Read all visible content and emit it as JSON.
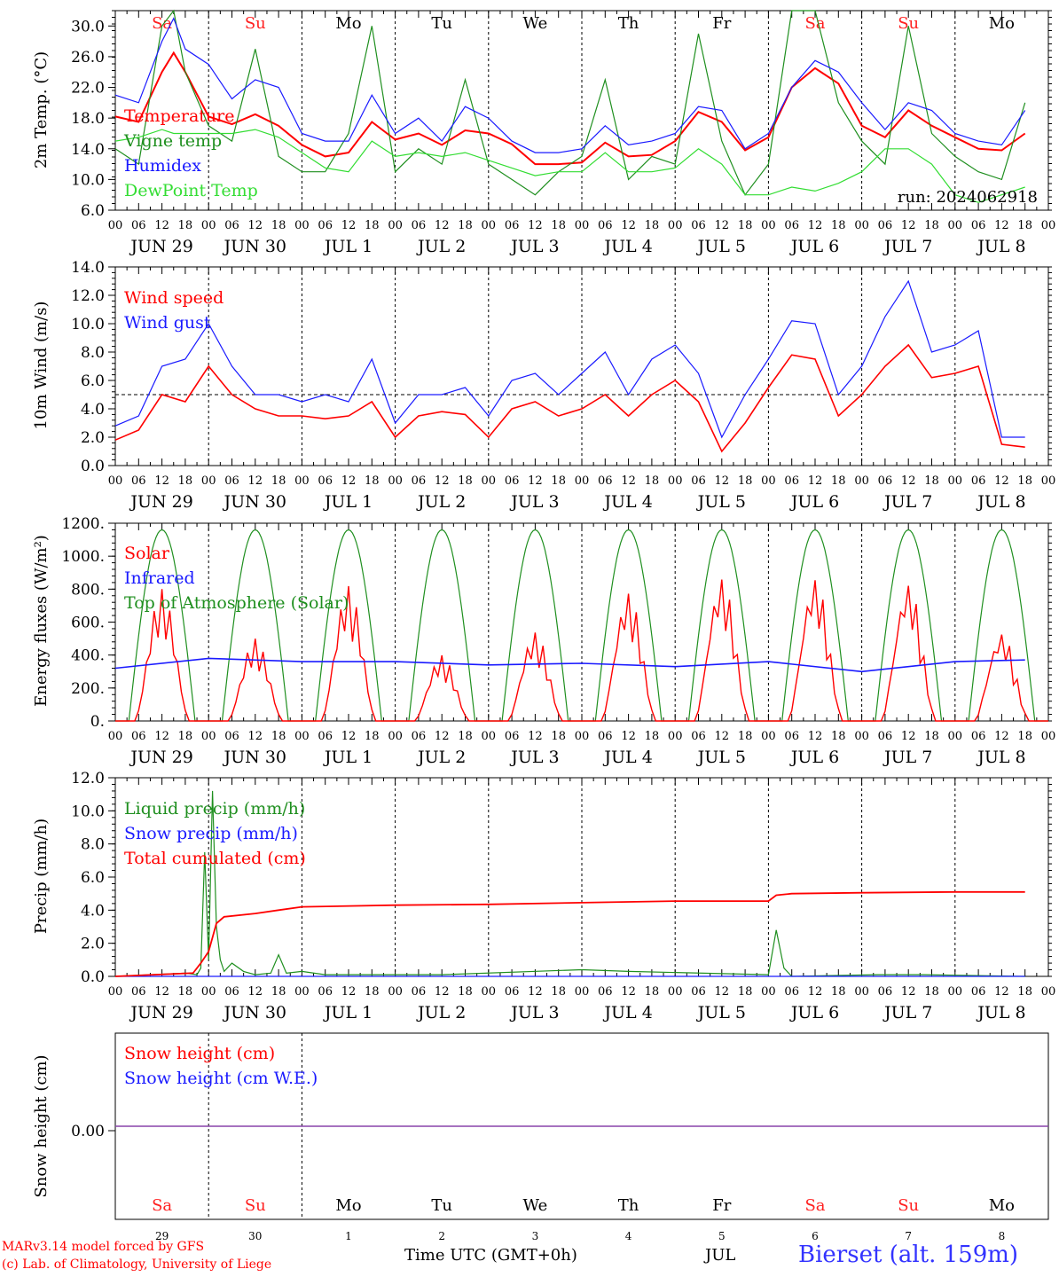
{
  "run_label": "run: 2024062918",
  "weekdays": [
    {
      "label": "Sa",
      "weekend": true
    },
    {
      "label": "Su",
      "weekend": true
    },
    {
      "label": "Mo",
      "weekend": false
    },
    {
      "label": "Tu",
      "weekend": false
    },
    {
      "label": "We",
      "weekend": false
    },
    {
      "label": "Th",
      "weekend": false
    },
    {
      "label": "Fr",
      "weekend": false
    },
    {
      "label": "Sa",
      "weekend": true
    },
    {
      "label": "Su",
      "weekend": true
    },
    {
      "label": "Mo",
      "weekend": false
    }
  ],
  "hour_ticks": [
    "00",
    "06",
    "12",
    "18"
  ],
  "date_labels": [
    "JUN 29",
    "JUN 30",
    "JUL  1",
    "JUL  2",
    "JUL  3",
    "JUL  4",
    "JUL  5",
    "JUL  6",
    "JUL  7",
    "JUL  8"
  ],
  "day_numbers": [
    "29",
    "30",
    "1",
    "2",
    "3",
    "4",
    "5",
    "6",
    "7",
    "8"
  ],
  "colors": {
    "red": "#ff0000",
    "green": "#1f8f1f",
    "blue": "#1a1aff",
    "lime": "#33dd33",
    "weekend": "#ff2020",
    "purple": "#8844aa"
  },
  "footer": {
    "model": "MARv3.14 model forced by GFS",
    "lab": "(c) Lab. of Climatology, University of Liege",
    "xlabel": "Time UTC (GMT+0h)",
    "month": "JUL",
    "station": "Bierset (alt. 159m)"
  },
  "chart_data": [
    {
      "type": "line",
      "ylabel": "2m Temp. (°C)",
      "ylim": [
        6,
        32
      ],
      "yticks": [
        "6.0",
        "10.0",
        "14.0",
        "18.0",
        "22.0",
        "26.0",
        "30.0"
      ],
      "x_unit": "hours since JUN 29 00 UTC",
      "series": [
        {
          "name": "Temperature",
          "color": "red",
          "x": [
            0,
            6,
            12,
            15,
            18,
            24,
            30,
            36,
            42,
            48,
            54,
            60,
            66,
            72,
            78,
            84,
            90,
            96,
            102,
            108,
            114,
            120,
            126,
            132,
            138,
            144,
            150,
            156,
            162,
            168,
            174,
            180,
            186,
            192,
            198,
            204,
            210,
            216,
            222,
            228,
            234
          ],
          "y": [
            18.2,
            17.5,
            24,
            26.5,
            24,
            18.2,
            17.2,
            18.5,
            17,
            14.5,
            13,
            13.5,
            17.5,
            15.2,
            16,
            14.5,
            16.4,
            16,
            14.6,
            12,
            12,
            12.2,
            14.8,
            13,
            13.2,
            15,
            18.8,
            17.5,
            13.8,
            15.5,
            22,
            24.5,
            22.5,
            17,
            15.5,
            19,
            17,
            15.5,
            14,
            13.8,
            16
          ]
        },
        {
          "name": "Vigne temp",
          "color": "green",
          "x": [
            0,
            6,
            12,
            15,
            18,
            24,
            30,
            36,
            42,
            48,
            54,
            60,
            66,
            72,
            78,
            84,
            90,
            96,
            102,
            108,
            114,
            120,
            126,
            132,
            138,
            144,
            150,
            156,
            162,
            168,
            174,
            180,
            186,
            192,
            198,
            204,
            210,
            216,
            222,
            228,
            234
          ],
          "y": [
            14,
            12,
            30,
            33,
            24,
            17,
            15,
            27,
            13,
            11,
            11,
            16,
            30,
            11,
            14,
            12,
            23,
            12,
            10,
            8,
            11,
            13,
            23,
            10,
            13,
            12,
            29,
            15,
            8,
            12,
            33,
            34,
            20,
            15,
            12,
            30,
            16,
            13,
            11,
            10,
            20
          ]
        },
        {
          "name": "Humidex",
          "color": "blue",
          "x": [
            0,
            6,
            12,
            15,
            18,
            24,
            30,
            36,
            42,
            48,
            54,
            60,
            66,
            72,
            78,
            84,
            90,
            96,
            102,
            108,
            114,
            120,
            126,
            132,
            138,
            144,
            150,
            156,
            162,
            168,
            174,
            180,
            186,
            192,
            198,
            204,
            210,
            216,
            222,
            228,
            234
          ],
          "y": [
            21,
            20,
            28,
            31,
            27,
            25,
            20.5,
            23,
            22,
            16,
            15,
            15,
            21,
            16,
            18,
            15,
            19.5,
            18,
            15,
            13.5,
            13.5,
            14,
            17,
            14.5,
            15,
            16,
            19.5,
            19,
            14,
            16,
            22,
            25.5,
            24,
            20,
            16.5,
            20,
            19,
            16,
            15,
            14.5,
            19
          ]
        },
        {
          "name": "DewPoint Temp",
          "color": "lime",
          "x": [
            0,
            6,
            12,
            15,
            18,
            24,
            30,
            36,
            42,
            48,
            54,
            60,
            66,
            72,
            78,
            84,
            90,
            96,
            102,
            108,
            114,
            120,
            126,
            132,
            138,
            144,
            150,
            156,
            162,
            168,
            174,
            180,
            186,
            192,
            198,
            204,
            210,
            216,
            222,
            228,
            234
          ],
          "y": [
            15,
            15.5,
            16.5,
            16,
            16,
            16,
            16,
            16.5,
            15.5,
            13.5,
            11.5,
            11,
            15,
            13,
            13.5,
            13,
            13.5,
            12.5,
            11.5,
            10.5,
            11,
            11,
            13.5,
            11,
            11,
            11.5,
            14,
            12,
            8,
            8,
            9,
            8.5,
            9.5,
            11,
            14,
            14,
            12,
            8,
            7,
            8,
            9
          ]
        }
      ],
      "legend": [
        "Temperature",
        "Vigne temp",
        "Humidex",
        "DewPoint Temp"
      ]
    },
    {
      "type": "line",
      "ylabel": "10m Wind (m/s)",
      "ylim": [
        0,
        14
      ],
      "yticks": [
        "0.0",
        "2.0",
        "4.0",
        "6.0",
        "8.0",
        "10.0",
        "12.0",
        "14.0"
      ],
      "reference_line": 5,
      "series": [
        {
          "name": "Wind speed",
          "color": "red",
          "x": [
            0,
            6,
            12,
            18,
            24,
            30,
            36,
            42,
            48,
            54,
            60,
            66,
            72,
            78,
            84,
            90,
            96,
            102,
            108,
            114,
            120,
            126,
            132,
            138,
            144,
            150,
            156,
            162,
            168,
            174,
            180,
            186,
            192,
            198,
            204,
            210,
            216,
            222,
            228,
            234
          ],
          "y": [
            1.8,
            2.5,
            5,
            4.5,
            7,
            5,
            4,
            3.5,
            3.5,
            3.3,
            3.5,
            4.5,
            2,
            3.5,
            3.8,
            3.6,
            2,
            4,
            4.5,
            3.5,
            4,
            5,
            3.5,
            5,
            6,
            4.5,
            1,
            3,
            5.5,
            7.8,
            7.5,
            3.5,
            5,
            7,
            8.5,
            6.2,
            6.5,
            7,
            1.5,
            1.3
          ]
        },
        {
          "name": "Wind gust",
          "color": "blue",
          "x": [
            0,
            6,
            12,
            18,
            24,
            30,
            36,
            42,
            48,
            54,
            60,
            66,
            72,
            78,
            84,
            90,
            96,
            102,
            108,
            114,
            120,
            126,
            132,
            138,
            144,
            150,
            156,
            162,
            168,
            174,
            180,
            186,
            192,
            198,
            204,
            210,
            216,
            222,
            228,
            234
          ],
          "y": [
            2.8,
            3.5,
            7,
            7.5,
            10,
            7,
            5,
            5,
            4.5,
            5,
            4.5,
            7.5,
            3,
            5,
            5,
            5.5,
            3.5,
            6,
            6.5,
            5,
            6.5,
            8,
            5,
            7.5,
            8.5,
            6.5,
            2,
            5,
            7.5,
            10.2,
            10,
            5,
            7,
            10.5,
            13,
            8,
            8.5,
            9.5,
            2,
            2
          ]
        }
      ],
      "legend": [
        "Wind speed",
        "Wind gust"
      ]
    },
    {
      "type": "line",
      "ylabel": "Energy fluxes (W/m²)",
      "ylim": [
        0,
        1200
      ],
      "yticks": [
        "0.",
        "200.",
        "400.",
        "600.",
        "800.",
        "1000.",
        "1200."
      ],
      "series": [
        {
          "name": "Solar",
          "color": "red",
          "peaks": [
            800,
            500,
            820,
            400,
            540,
            780,
            870,
            870,
            840,
            540
          ]
        },
        {
          "name": "Infrared",
          "color": "blue",
          "x": [
            0,
            24,
            48,
            72,
            96,
            120,
            144,
            168,
            192,
            216,
            234
          ],
          "y": [
            320,
            380,
            360,
            360,
            340,
            350,
            330,
            360,
            300,
            360,
            370
          ]
        },
        {
          "name": "Top of Atmosphere (Solar)",
          "color": "green",
          "daily_peak": 1160
        }
      ],
      "legend": [
        "Solar",
        "Infrared",
        "Top of Atmosphere (Solar)"
      ]
    },
    {
      "type": "line",
      "ylabel": "Precip (mm/h)",
      "ylim": [
        0,
        12
      ],
      "yticks": [
        "0.0",
        "2.0",
        "4.0",
        "6.0",
        "8.0",
        "10.0",
        "12.0"
      ],
      "series": [
        {
          "name": "Liquid precip (mm/h)",
          "color": "green",
          "x": [
            0,
            18,
            21,
            22,
            23,
            24,
            25,
            26,
            27,
            28,
            30,
            33,
            36,
            40,
            42,
            44,
            48,
            54,
            84,
            120,
            132,
            168,
            170,
            172,
            174,
            196,
            208,
            234
          ],
          "y": [
            0,
            0.2,
            0.1,
            0.5,
            7.5,
            1,
            11.2,
            3,
            1,
            0.3,
            0.8,
            0.3,
            0.1,
            0.2,
            1.3,
            0.2,
            0.3,
            0.1,
            0.1,
            0.4,
            0.3,
            0.1,
            2.8,
            0.5,
            0,
            0.1,
            0.1,
            0
          ]
        },
        {
          "name": "Snow precip (mm/h)",
          "color": "blue",
          "x": [
            0,
            234
          ],
          "y": [
            0,
            0
          ]
        },
        {
          "name": "Total cumulated (cm)",
          "color": "red",
          "x": [
            0,
            20,
            22,
            24,
            26,
            28,
            36,
            42,
            48,
            72,
            96,
            120,
            144,
            168,
            170,
            174,
            192,
            216,
            234
          ],
          "y": [
            0,
            0.2,
            0.8,
            1.5,
            3.2,
            3.6,
            3.8,
            4,
            4.2,
            4.3,
            4.35,
            4.45,
            4.55,
            4.55,
            4.9,
            5.0,
            5.05,
            5.1,
            5.1
          ]
        }
      ],
      "legend": [
        "Liquid precip (mm/h)",
        "Snow precip (mm/h)",
        "Total cumulated (cm)"
      ]
    },
    {
      "type": "line",
      "ylabel": "Snow height (cm)",
      "yticks": [
        "0.00"
      ],
      "series": [
        {
          "name": "Snow height (cm)",
          "color": "red",
          "x": [
            0,
            240
          ],
          "y": [
            0,
            0
          ]
        },
        {
          "name": "Snow height (cm W.E.)",
          "color": "blue",
          "x": [
            0,
            240
          ],
          "y": [
            0,
            0
          ]
        }
      ],
      "legend": [
        "Snow height (cm)",
        "Snow height (cm W.E.)"
      ]
    }
  ]
}
